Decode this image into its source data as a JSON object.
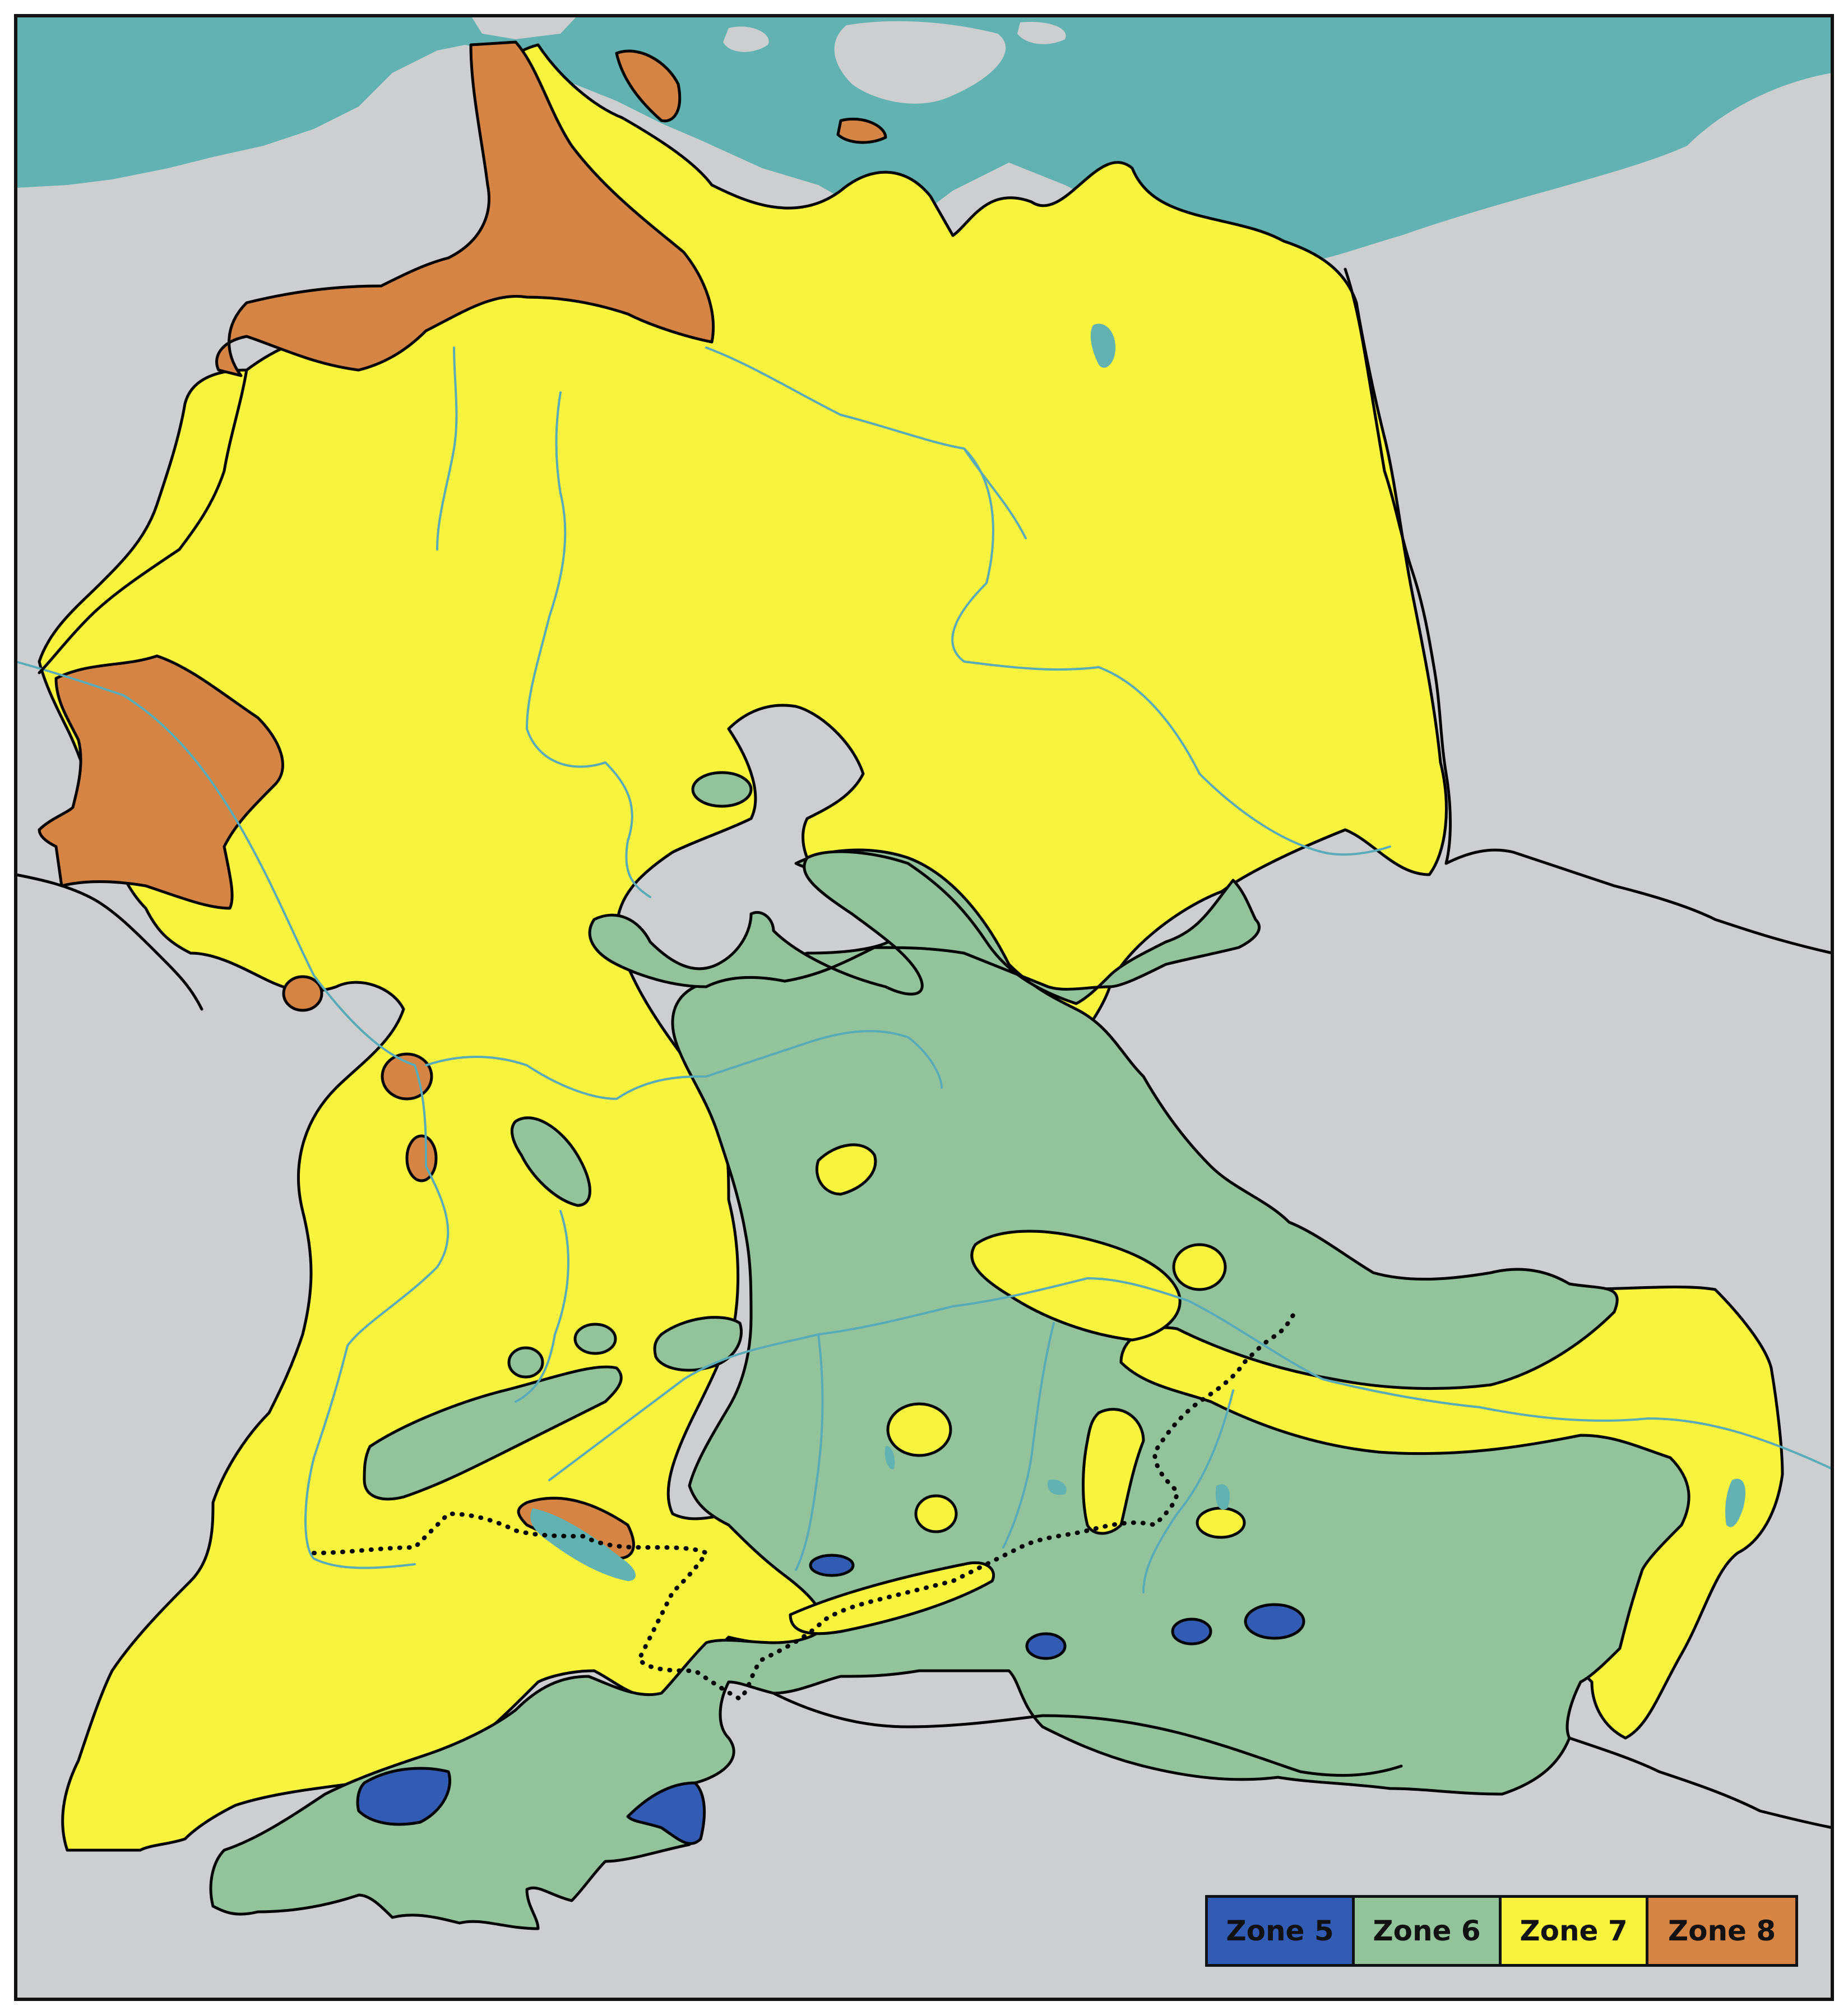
{
  "colors": {
    "background_land": "#cdcecf",
    "sea": "#62b2b2",
    "river": "#5aabb8",
    "frame": "#111111"
  },
  "legend": [
    {
      "label": "Zone 5",
      "color": "#325bb3",
      "text_color": "#111111"
    },
    {
      "label": "Zone 6",
      "color": "#93c39b",
      "text_color": "#111111"
    },
    {
      "label": "Zone 7",
      "color": "#f8f43e",
      "text_color": "#111111"
    },
    {
      "label": "Zone 8",
      "color": "#d58444",
      "text_color": "#111111"
    }
  ]
}
